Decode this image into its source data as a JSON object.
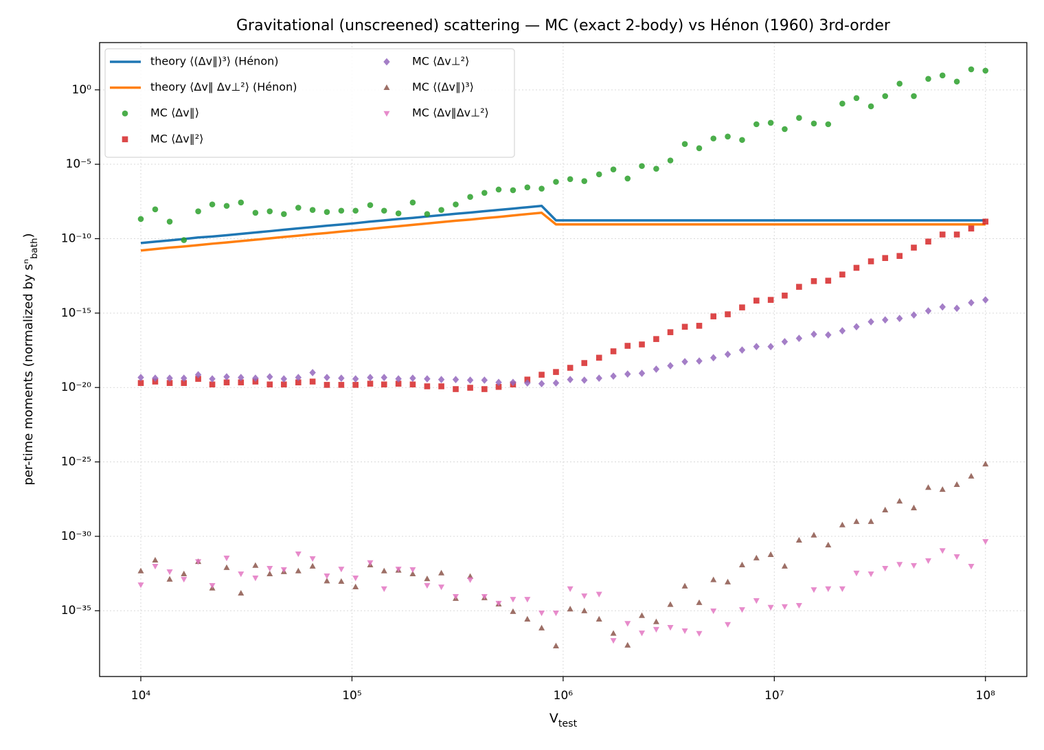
{
  "chart_data": {
    "type": "scatter",
    "title": "Gravitational (unscreened) scattering — MC (exact 2-body) vs Hénon (1960) 3rd-order",
    "x_label": "V_test",
    "y_label": "per-time moments (normalized by sⁿ_bath)",
    "xscale": "log",
    "yscale": "log",
    "grid": true,
    "legend": "upper left",
    "xlim": [
      6380.0,
      157000000.0
    ],
    "ylim": [
      3.8e-40,
      1500.0
    ],
    "xticks": [
      {
        "value": 10000.0,
        "label": "10⁴"
      },
      {
        "value": 100000.0,
        "label": "10⁵"
      },
      {
        "value": 1000000.0,
        "label": "10⁶"
      },
      {
        "value": 10000000.0,
        "label": "10⁷"
      },
      {
        "value": 100000000.0,
        "label": "10⁸"
      }
    ],
    "yticks": [
      {
        "value": 1,
        "label": "10⁰"
      },
      {
        "value": 1e-05,
        "label": "10⁻⁵"
      },
      {
        "value": 1e-10,
        "label": "10⁻¹⁰"
      },
      {
        "value": 1e-15,
        "label": "10⁻¹⁵"
      },
      {
        "value": 1e-20,
        "label": "10⁻²⁰"
      },
      {
        "value": 1e-25,
        "label": "10⁻²⁵"
      },
      {
        "value": 1e-30,
        "label": "10⁻³⁰"
      },
      {
        "value": 1e-35,
        "label": "10⁻³⁵"
      }
    ],
    "x": [
      10000.0,
      11700.0,
      13700.0,
      16000.0,
      18700.0,
      21800.0,
      25500.0,
      29800.0,
      34900.0,
      40800.0,
      47600.0,
      55700.0,
      65100.0,
      76100.0,
      89000.0,
      104000.0,
      122000.0,
      142000.0,
      166000.0,
      194000.0,
      227000.0,
      265000.0,
      310000.0,
      363000.0,
      424000.0,
      495000.0,
      579000.0,
      677000.0,
      791000.0,
      925000.0,
      1080000.0,
      1260000.0,
      1480000.0,
      1730000.0,
      2020000.0,
      2360000.0,
      2760000.0,
      3220000.0,
      3770000.0,
      4410000.0,
      5150000.0,
      6020000.0,
      7040000.0,
      8230000.0,
      9620000.0,
      11200000.0,
      13100000.0,
      15400000.0,
      18000000.0,
      21000000.0,
      24500000.0,
      28700000.0,
      33500000.0,
      39200000.0,
      45800000.0,
      53600000.0,
      62600000.0,
      73200000.0,
      85600000.0,
      100000000.0
    ],
    "series": [
      {
        "name": "theory  ⟨(Δv∥)³⟩ (Hénon)",
        "color": "#1f77b4",
        "marker": "line",
        "values": [
          5.1e-11,
          6.3e-11,
          7.7e-11,
          9.5e-11,
          1.2e-10,
          1.4e-10,
          1.7e-10,
          2.1e-10,
          2.6e-10,
          3.2e-10,
          4e-10,
          4.9e-10,
          6e-10,
          7.4e-10,
          9e-10,
          1.1e-09,
          1.4e-09,
          1.7e-09,
          2.1e-09,
          2.5e-09,
          3.1e-09,
          3.8e-09,
          4.7e-09,
          5.7e-09,
          7e-09,
          8.6e-09,
          1.05e-08,
          1.3e-08,
          1.6e-08,
          1.7e-09,
          1.7e-09,
          1.7e-09,
          1.7e-09,
          1.7e-09,
          1.7e-09,
          1.7e-09,
          1.7e-09,
          1.7e-09,
          1.7e-09,
          1.7e-09,
          1.7e-09,
          1.7e-09,
          1.7e-09,
          1.7e-09,
          1.7e-09,
          1.7e-09,
          1.7e-09,
          1.7e-09,
          1.7e-09,
          1.7e-09,
          1.7e-09,
          1.7e-09,
          1.7e-09,
          1.7e-09,
          1.7e-09,
          1.7e-09,
          1.7e-09,
          1.7e-09,
          1.7e-09,
          1.7e-09
        ]
      },
      {
        "name": "theory  ⟨Δv∥ Δv⊥²⟩ (Hénon)",
        "color": "#ff7f0e",
        "marker": "line",
        "values": [
          1.6e-11,
          2e-11,
          2.5e-11,
          3e-11,
          3.7e-11,
          4.6e-11,
          5.6e-11,
          6.9e-11,
          8.5e-11,
          1.05e-10,
          1.3e-10,
          1.6e-10,
          2e-10,
          2.4e-10,
          3e-10,
          3.7e-10,
          4.5e-10,
          5.6e-10,
          6.9e-10,
          8.5e-10,
          1.05e-09,
          1.3e-09,
          1.6e-09,
          1.9e-09,
          2.4e-09,
          2.9e-09,
          3.6e-09,
          4.5e-09,
          5.5e-09,
          9.1e-10,
          9.1e-10,
          9.1e-10,
          9.1e-10,
          9.1e-10,
          9.1e-10,
          9.1e-10,
          9.1e-10,
          9.1e-10,
          9.1e-10,
          9.1e-10,
          9.1e-10,
          9.1e-10,
          9.1e-10,
          9.1e-10,
          9.1e-10,
          9.1e-10,
          9.1e-10,
          9.1e-10,
          9.1e-10,
          9.1e-10,
          9.1e-10,
          9.1e-10,
          9.1e-10,
          9.1e-10,
          9.1e-10,
          9.1e-10,
          9.1e-10,
          9.1e-10,
          9.1e-10,
          9.1e-10
        ]
      },
      {
        "name": "MC  ⟨Δv∥⟩",
        "color": "#2ca02c",
        "marker": "circle",
        "values": [
          2.1e-09,
          9.3e-09,
          1.4e-09,
          8e-11,
          6.9e-09,
          2e-08,
          1.6e-08,
          2.7e-08,
          5.5e-09,
          6.9e-09,
          4.5e-09,
          1.2e-08,
          8.5e-09,
          6.2e-09,
          7.6e-09,
          7.6e-09,
          1.8e-08,
          7.6e-09,
          5e-09,
          2.7e-08,
          4.5e-09,
          8.5e-09,
          2e-08,
          6.4e-08,
          1.2e-07,
          2e-07,
          1.8e-07,
          2.8e-07,
          2.3e-07,
          6.6e-07,
          1e-06,
          7.4e-07,
          2.1e-06,
          4.5e-06,
          1.1e-06,
          7.6e-06,
          5e-06,
          1.8e-05,
          0.00023,
          0.00012,
          0.00054,
          0.00073,
          0.00043,
          0.0049,
          0.0061,
          0.0023,
          0.013,
          0.0055,
          0.0049,
          0.12,
          0.28,
          0.078,
          0.38,
          2.6,
          0.38,
          5.5,
          9.3,
          3.6,
          24,
          19.5
        ]
      },
      {
        "name": "MC  ⟨Δv∥²⟩",
        "color": "#d62728",
        "marker": "square",
        "values": [
          2e-20,
          2.5e-20,
          2e-20,
          2e-20,
          3.8e-20,
          1.6e-20,
          2.2e-20,
          2.2e-20,
          2.5e-20,
          1.6e-20,
          1.6e-20,
          2.2e-20,
          2.5e-20,
          1.5e-20,
          1.5e-20,
          1.5e-20,
          1.8e-20,
          1.6e-20,
          1.8e-20,
          1.6e-20,
          1.2e-20,
          1.2e-20,
          7.8e-21,
          9.6e-21,
          7.8e-21,
          1.1e-20,
          1.6e-20,
          3.4e-20,
          7.2e-20,
          1.1e-19,
          2.1e-19,
          4.4e-19,
          1e-18,
          2.7e-18,
          6.3e-18,
          7.8e-18,
          1.8e-17,
          5.2e-17,
          1.2e-16,
          1.4e-16,
          6e-16,
          8.3e-16,
          2.4e-15,
          6.9e-15,
          7.7e-15,
          1.5e-14,
          5.8e-14,
          1.4e-13,
          1.5e-13,
          3.9e-13,
          1.1e-12,
          3e-12,
          5e-12,
          6.9e-12,
          2.5e-11,
          6.4e-11,
          1.9e-10,
          1.9e-10,
          4.8e-10,
          1.4e-09
        ]
      },
      {
        "name": "MC  ⟨Δv⊥²⟩",
        "color": "#9467bd",
        "marker": "diamond",
        "values": [
          4.7e-20,
          4.2e-20,
          4.2e-20,
          4.2e-20,
          7.2e-20,
          3.8e-20,
          5.2e-20,
          4.7e-20,
          4.2e-20,
          5.2e-20,
          3.8e-20,
          4.7e-20,
          1e-19,
          4.7e-20,
          4.2e-20,
          3.8e-20,
          4.7e-20,
          4.7e-20,
          3.8e-20,
          4.2e-20,
          3.8e-20,
          3.4e-20,
          3.4e-20,
          3.1e-20,
          3.1e-20,
          2.2e-20,
          2.2e-20,
          2e-20,
          1.8e-20,
          2e-20,
          3.4e-20,
          3.1e-20,
          4.2e-20,
          5.8e-20,
          8e-20,
          9e-20,
          1.7e-19,
          2.9e-19,
          5.4e-19,
          6e-19,
          1e-18,
          1.7e-18,
          3.3e-18,
          5.6e-18,
          5.6e-18,
          1.2e-17,
          2e-17,
          3.8e-17,
          3.4e-17,
          6.5e-17,
          1.2e-16,
          2.6e-16,
          3.5e-16,
          4.4e-16,
          7.4e-16,
          1.4e-15,
          2.6e-15,
          2.1e-15,
          5e-15,
          7.7e-15
        ]
      },
      {
        "name": "MC  ⟨(Δv∥)³⟩",
        "color": "#8c564b",
        "marker": "triangle-up",
        "values": [
          4.7e-33,
          2.5e-32,
          1.3e-33,
          3e-33,
          2e-32,
          3.3e-34,
          7.9e-33,
          1.5e-34,
          1.1e-32,
          3e-33,
          4.2e-33,
          4.7e-33,
          9.8e-33,
          1e-33,
          9.3e-34,
          4e-34,
          1.2e-32,
          4.7e-33,
          5.2e-33,
          3e-33,
          1.4e-33,
          3.4e-33,
          6.6e-35,
          2e-33,
          7.4e-35,
          2.8e-35,
          8.8e-36,
          2.7e-36,
          6.9e-37,
          4.3e-38,
          1.3e-35,
          9.8e-36,
          2.7e-36,
          3e-37,
          4.8e-38,
          4.7e-36,
          1.8e-36,
          2.6e-35,
          4.5e-34,
          3.5e-35,
          1.2e-33,
          8.5e-34,
          1.2e-32,
          3.5e-32,
          5.9e-32,
          9.8e-33,
          5.5e-31,
          1.2e-30,
          2.6e-31,
          5.8e-30,
          9.8e-30,
          9.8e-30,
          5.9e-29,
          2.3e-28,
          8.1e-29,
          1.9e-27,
          1.4e-27,
          3e-27,
          1.1e-26,
          7.2e-26
        ]
      },
      {
        "name": "MC  ⟨Δv∥Δv⊥²⟩",
        "color": "#e377c2",
        "marker": "triangle-down",
        "values": [
          5.5e-34,
          9.8e-33,
          4.2e-33,
          1.3e-33,
          2e-32,
          5e-34,
          3.5e-32,
          3e-33,
          1.6e-33,
          7.1e-33,
          5.8e-33,
          6.6e-32,
          3.2e-32,
          2.2e-33,
          6.3e-33,
          1.6e-33,
          1.7e-32,
          3e-34,
          6.3e-33,
          5.8e-33,
          5e-34,
          4e-34,
          9.1e-35,
          1.2e-33,
          9.1e-35,
          3.2e-35,
          5.9e-35,
          5.9e-35,
          7.1e-36,
          7.1e-36,
          3e-34,
          1e-34,
          1.3e-34,
          1e-37,
          1.4e-36,
          3.2e-37,
          5.6e-37,
          7.6e-37,
          4.5e-37,
          3e-37,
          9.8e-36,
          1.2e-36,
          1.2e-35,
          4.8e-35,
          1.7e-35,
          1.9e-35,
          2.3e-35,
          2.6e-34,
          3e-34,
          3e-34,
          3.4e-33,
          3e-33,
          7.1e-33,
          1.3e-32,
          1.1e-32,
          2.3e-32,
          1.1e-31,
          4.3e-32,
          9.8e-33,
          4.5e-31
        ]
      }
    ]
  }
}
